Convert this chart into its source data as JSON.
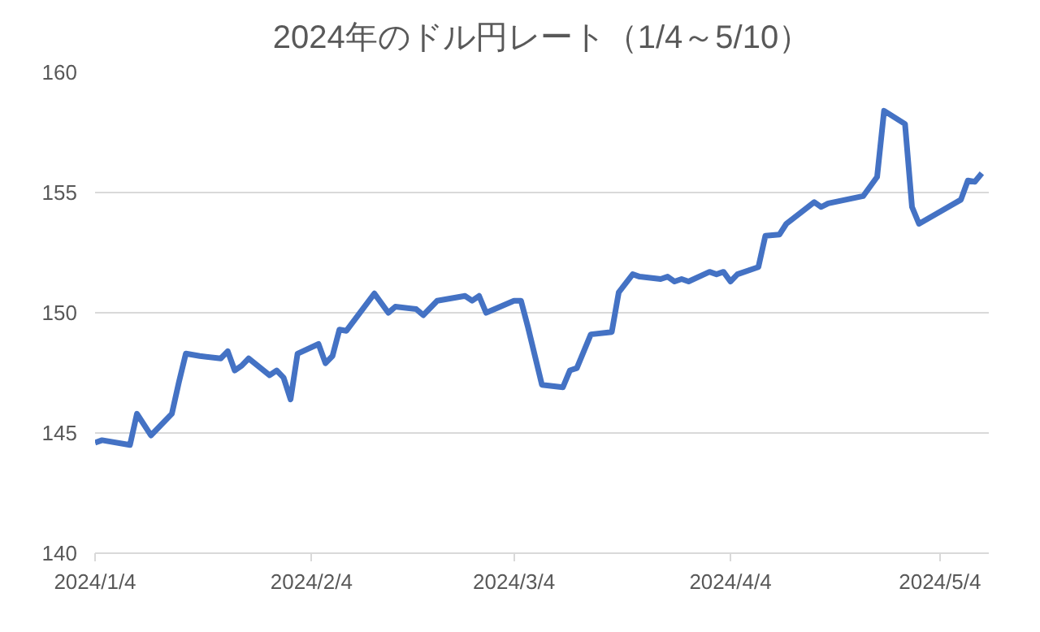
{
  "chart_data": {
    "type": "line",
    "title": "2024年のドル円レート（1/4～5/10）",
    "x": [
      "2024-01-04",
      "2024-01-05",
      "2024-01-09",
      "2024-01-10",
      "2024-01-12",
      "2024-01-15",
      "2024-01-16",
      "2024-01-17",
      "2024-01-19",
      "2024-01-22",
      "2024-01-23",
      "2024-01-24",
      "2024-01-25",
      "2024-01-26",
      "2024-01-29",
      "2024-01-30",
      "2024-01-31",
      "2024-02-01",
      "2024-02-02",
      "2024-02-05",
      "2024-02-06",
      "2024-02-07",
      "2024-02-08",
      "2024-02-09",
      "2024-02-13",
      "2024-02-15",
      "2024-02-16",
      "2024-02-19",
      "2024-02-20",
      "2024-02-22",
      "2024-02-26",
      "2024-02-27",
      "2024-02-28",
      "2024-02-29",
      "2024-03-04",
      "2024-03-05",
      "2024-03-06",
      "2024-03-08",
      "2024-03-11",
      "2024-03-12",
      "2024-03-13",
      "2024-03-15",
      "2024-03-18",
      "2024-03-19",
      "2024-03-21",
      "2024-03-22",
      "2024-03-25",
      "2024-03-26",
      "2024-03-27",
      "2024-03-28",
      "2024-03-29",
      "2024-04-01",
      "2024-04-02",
      "2024-04-03",
      "2024-04-04",
      "2024-04-05",
      "2024-04-08",
      "2024-04-09",
      "2024-04-11",
      "2024-04-12",
      "2024-04-16",
      "2024-04-17",
      "2024-04-18",
      "2024-04-23",
      "2024-04-25",
      "2024-04-26",
      "2024-04-29",
      "2024-04-30",
      "2024-05-01",
      "2024-05-07",
      "2024-05-08",
      "2024-05-09",
      "2024-05-10"
    ],
    "series": [
      {
        "color": "#4472c4",
        "values": [
          144.6,
          144.7,
          144.5,
          145.8,
          144.9,
          145.8,
          147.1,
          148.3,
          148.2,
          148.1,
          148.4,
          147.6,
          147.8,
          148.1,
          147.4,
          147.6,
          147.3,
          146.4,
          148.3,
          148.7,
          147.9,
          148.2,
          149.3,
          149.25,
          150.8,
          150.0,
          150.25,
          150.15,
          149.9,
          150.5,
          150.7,
          150.5,
          150.7,
          150.0,
          150.5,
          150.5,
          149.4,
          147.0,
          146.9,
          147.6,
          147.7,
          149.1,
          149.2,
          150.85,
          151.6,
          151.5,
          151.4,
          151.5,
          151.3,
          151.4,
          151.3,
          151.7,
          151.6,
          151.7,
          151.3,
          151.6,
          151.9,
          153.2,
          153.25,
          153.7,
          154.6,
          154.4,
          154.55,
          154.85,
          155.65,
          158.4,
          157.85,
          154.4,
          153.7,
          154.7,
          155.5,
          155.45,
          155.8
        ]
      }
    ],
    "xlim": [
      "2024-01-04",
      "2024-05-11"
    ],
    "xticks": [
      {
        "value": "2024-01-04",
        "label": "2024/1/4"
      },
      {
        "value": "2024-02-04",
        "label": "2024/2/4"
      },
      {
        "value": "2024-03-04",
        "label": "2024/3/4"
      },
      {
        "value": "2024-04-04",
        "label": "2024/4/4"
      },
      {
        "value": "2024-05-04",
        "label": "2024/5/4"
      }
    ],
    "ylim": [
      140,
      160
    ],
    "yticks": [
      140,
      145,
      150,
      155,
      160
    ],
    "grid": "y",
    "marker": "none",
    "line_style": "solid"
  }
}
